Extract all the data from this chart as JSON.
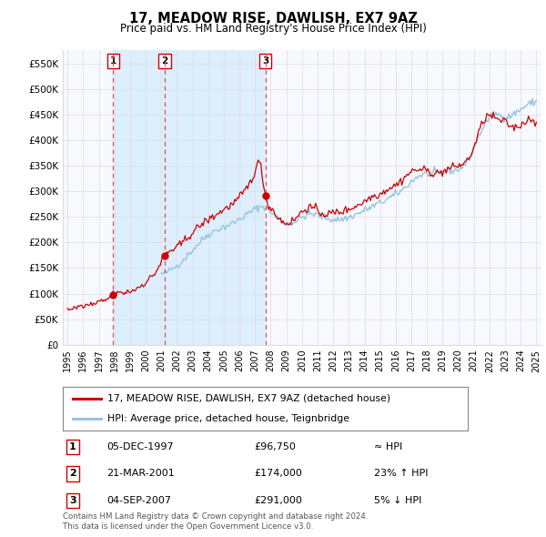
{
  "title": "17, MEADOW RISE, DAWLISH, EX7 9AZ",
  "subtitle": "Price paid vs. HM Land Registry's House Price Index (HPI)",
  "ylabel_ticks": [
    "£0",
    "£50K",
    "£100K",
    "£150K",
    "£200K",
    "£250K",
    "£300K",
    "£350K",
    "£400K",
    "£450K",
    "£500K",
    "£550K"
  ],
  "ytick_values": [
    0,
    50000,
    100000,
    150000,
    200000,
    250000,
    300000,
    350000,
    400000,
    450000,
    500000,
    550000
  ],
  "ylim": [
    0,
    575000
  ],
  "xlim_start": 1994.7,
  "xlim_end": 2025.3,
  "sale1": {
    "date_num": 1997.92,
    "price": 96750,
    "label": "1",
    "text": "05-DEC-1997",
    "price_text": "£96,750",
    "hpi_text": "≈ HPI"
  },
  "sale2": {
    "date_num": 2001.22,
    "price": 174000,
    "label": "2",
    "text": "21-MAR-2001",
    "price_text": "£174,000",
    "hpi_text": "23% ↑ HPI"
  },
  "sale3": {
    "date_num": 2007.67,
    "price": 291000,
    "label": "3",
    "text": "04-SEP-2007",
    "price_text": "£291,000",
    "hpi_text": "5% ↓ HPI"
  },
  "line_color_property": "#cc0000",
  "line_color_hpi": "#92c5de",
  "vline_color": "#dd5555",
  "shade_color": "#ddeeff",
  "grid_color": "#dddddd",
  "background_color": "#f8f8ff",
  "legend_label_property": "17, MEADOW RISE, DAWLISH, EX7 9AZ (detached house)",
  "legend_label_hpi": "HPI: Average price, detached house, Teignbridge",
  "footer_line1": "Contains HM Land Registry data © Crown copyright and database right 2024.",
  "footer_line2": "This data is licensed under the Open Government Licence v3.0.",
  "xtick_years": [
    1995,
    1996,
    1997,
    1998,
    1999,
    2000,
    2001,
    2002,
    2003,
    2004,
    2005,
    2006,
    2007,
    2008,
    2009,
    2010,
    2011,
    2012,
    2013,
    2014,
    2015,
    2016,
    2017,
    2018,
    2019,
    2020,
    2021,
    2022,
    2023,
    2024,
    2025
  ]
}
